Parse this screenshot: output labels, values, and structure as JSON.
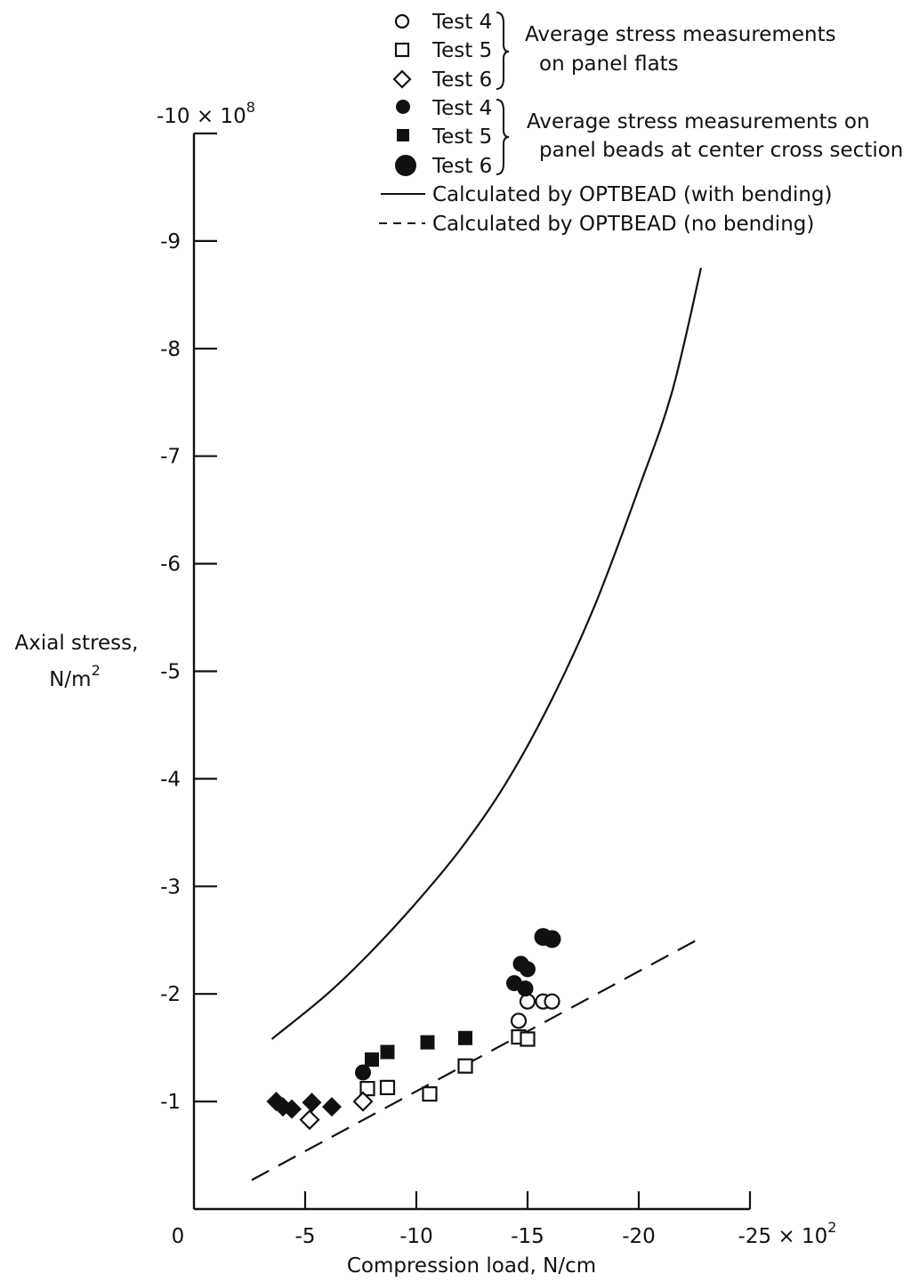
{
  "chart_data": {
    "type": "scatter",
    "xlabel": "Compression load, N/cm",
    "ylabel_line1": "Axial stress,",
    "ylabel_line2": "N/m",
    "ylabel_sup": "2",
    "x_ticks": [
      {
        "value": 0,
        "label": "0"
      },
      {
        "value": -5,
        "label": "-5"
      },
      {
        "value": -10,
        "label": "-10"
      },
      {
        "value": -15,
        "label": "-15"
      },
      {
        "value": -20,
        "label": "-20"
      }
    ],
    "x_last_tick": {
      "value": -25,
      "label": "-25 × 10",
      "sup": "2"
    },
    "y_ticks": [
      {
        "value": -1,
        "label": "-1"
      },
      {
        "value": -2,
        "label": "-2"
      },
      {
        "value": -3,
        "label": "-3"
      },
      {
        "value": -4,
        "label": "-4"
      },
      {
        "value": -5,
        "label": "-5"
      },
      {
        "value": -6,
        "label": "-6"
      },
      {
        "value": -7,
        "label": "-7"
      },
      {
        "value": -8,
        "label": "-8"
      },
      {
        "value": -9,
        "label": "-9"
      }
    ],
    "y_top_tick": {
      "value": -10,
      "label": "-10 × 10",
      "sup": "8"
    },
    "xlim": [
      0,
      -25
    ],
    "ylim": [
      0,
      -10
    ],
    "grid": false,
    "legend_position": "top-right",
    "legend": {
      "test4": "Test 4",
      "test5": "Test 5",
      "test6": "Test 6",
      "flats_line1": "Average stress measurements",
      "flats_line2": "on panel flats",
      "beads_line1": "Average stress measurements on",
      "beads_line2": "panel beads at center cross section",
      "with_bending": "Calculated by OPTBEAD (with bending)",
      "no_bending": "Calculated by OPTBEAD (no bending)"
    },
    "series": [
      {
        "key": "flats_test4",
        "marker": "circle-open",
        "points": [
          [
            -14.6,
            -1.75
          ],
          [
            -15.0,
            -1.93
          ],
          [
            -15.7,
            -1.93
          ],
          [
            -16.1,
            -1.93
          ]
        ]
      },
      {
        "key": "flats_test5",
        "marker": "square-open",
        "points": [
          [
            -7.8,
            -1.12
          ],
          [
            -8.7,
            -1.13
          ],
          [
            -10.6,
            -1.07
          ],
          [
            -12.2,
            -1.33
          ],
          [
            -14.6,
            -1.6
          ],
          [
            -15.0,
            -1.58
          ]
        ]
      },
      {
        "key": "flats_test6",
        "marker": "diamond-open",
        "points": [
          [
            -5.2,
            -0.83
          ],
          [
            -7.6,
            -1.0
          ]
        ]
      },
      {
        "key": "beads_test4",
        "marker": "circle-filled",
        "points": [
          [
            -14.4,
            -2.1
          ],
          [
            -14.7,
            -2.28
          ],
          [
            -15.0,
            -2.23
          ],
          [
            -14.9,
            -2.05
          ],
          [
            -7.6,
            -1.27
          ]
        ]
      },
      {
        "key": "beads_test5",
        "marker": "square-filled",
        "points": [
          [
            -8.0,
            -1.39
          ],
          [
            -8.7,
            -1.46
          ],
          [
            -10.5,
            -1.55
          ],
          [
            -12.2,
            -1.59
          ]
        ]
      },
      {
        "key": "beads_test6",
        "marker": "diamond-filled",
        "points": [
          [
            -3.7,
            -1.0
          ],
          [
            -4.0,
            -0.95
          ],
          [
            -4.4,
            -0.93
          ],
          [
            -5.3,
            -0.99
          ],
          [
            -6.2,
            -0.95
          ]
        ]
      },
      {
        "key": "beads_test6_large",
        "marker": "circle-filled-large",
        "points": [
          [
            -15.7,
            -2.53
          ],
          [
            -16.1,
            -2.51
          ]
        ]
      }
    ],
    "lines": [
      {
        "key": "with_bending",
        "style": "solid",
        "points": [
          [
            -3.5,
            -1.58
          ],
          [
            -6,
            -2.0
          ],
          [
            -8,
            -2.4
          ],
          [
            -10,
            -2.85
          ],
          [
            -12,
            -3.35
          ],
          [
            -14,
            -3.95
          ],
          [
            -16,
            -4.7
          ],
          [
            -18,
            -5.6
          ],
          [
            -20,
            -6.7
          ],
          [
            -21.5,
            -7.6
          ],
          [
            -22.8,
            -8.75
          ]
        ]
      },
      {
        "key": "no_bending",
        "style": "dashed",
        "points": [
          [
            -2.6,
            -0.27
          ],
          [
            -22.6,
            -2.5
          ]
        ]
      }
    ]
  }
}
